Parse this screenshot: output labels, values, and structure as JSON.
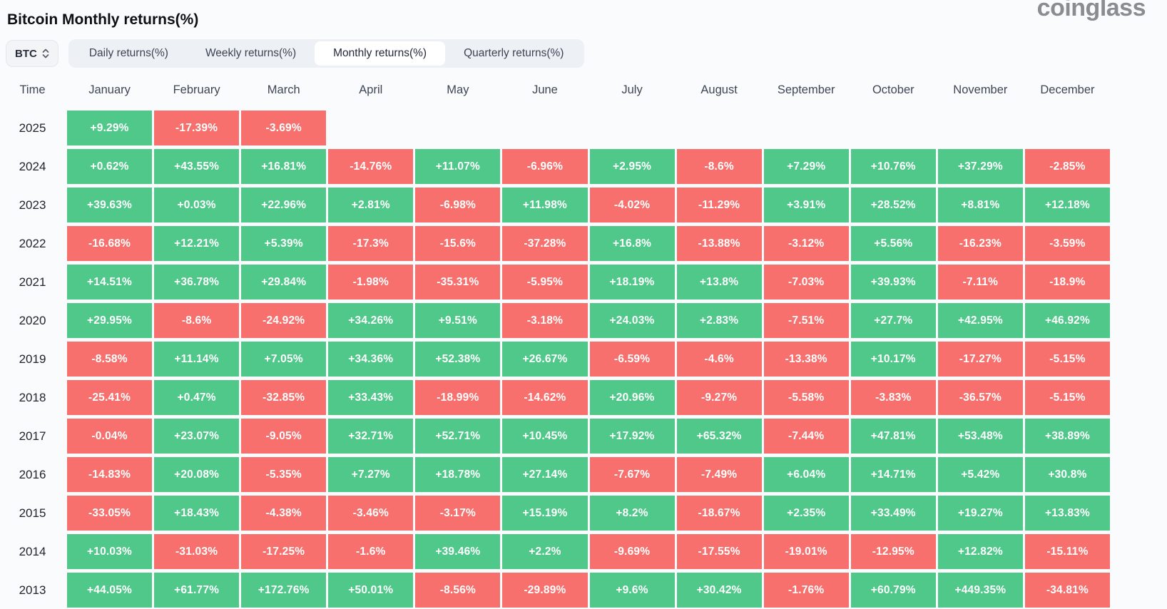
{
  "page": {
    "title": "Bitcoin Monthly returns(%)",
    "logo_text": "coinglass"
  },
  "controls": {
    "symbol_select": {
      "value": "BTC"
    },
    "tabs": [
      {
        "label": "Daily returns(%)",
        "active": false
      },
      {
        "label": "Weekly returns(%)",
        "active": false
      },
      {
        "label": "Monthly returns(%)",
        "active": true
      },
      {
        "label": "Quarterly returns(%)",
        "active": false
      }
    ]
  },
  "colors": {
    "positive": "#4fc88a",
    "negative": "#f7706d",
    "page_background": "#fafbfc",
    "tabbar_background": "#edf0f4"
  },
  "chart_data": {
    "type": "table",
    "title": "Bitcoin Monthly returns(%)",
    "columns": [
      "Time",
      "January",
      "February",
      "March",
      "April",
      "May",
      "June",
      "July",
      "August",
      "September",
      "October",
      "November",
      "December"
    ],
    "rows": [
      {
        "year": "2025",
        "values": [
          "+9.29%",
          "-17.39%",
          "-3.69%",
          "",
          "",
          "",
          "",
          "",
          "",
          "",
          "",
          ""
        ]
      },
      {
        "year": "2024",
        "values": [
          "+0.62%",
          "+43.55%",
          "+16.81%",
          "-14.76%",
          "+11.07%",
          "-6.96%",
          "+2.95%",
          "-8.6%",
          "+7.29%",
          "+10.76%",
          "+37.29%",
          "-2.85%"
        ]
      },
      {
        "year": "2023",
        "values": [
          "+39.63%",
          "+0.03%",
          "+22.96%",
          "+2.81%",
          "-6.98%",
          "+11.98%",
          "-4.02%",
          "-11.29%",
          "+3.91%",
          "+28.52%",
          "+8.81%",
          "+12.18%"
        ]
      },
      {
        "year": "2022",
        "values": [
          "-16.68%",
          "+12.21%",
          "+5.39%",
          "-17.3%",
          "-15.6%",
          "-37.28%",
          "+16.8%",
          "-13.88%",
          "-3.12%",
          "+5.56%",
          "-16.23%",
          "-3.59%"
        ]
      },
      {
        "year": "2021",
        "values": [
          "+14.51%",
          "+36.78%",
          "+29.84%",
          "-1.98%",
          "-35.31%",
          "-5.95%",
          "+18.19%",
          "+13.8%",
          "-7.03%",
          "+39.93%",
          "-7.11%",
          "-18.9%"
        ]
      },
      {
        "year": "2020",
        "values": [
          "+29.95%",
          "-8.6%",
          "-24.92%",
          "+34.26%",
          "+9.51%",
          "-3.18%",
          "+24.03%",
          "+2.83%",
          "-7.51%",
          "+27.7%",
          "+42.95%",
          "+46.92%"
        ]
      },
      {
        "year": "2019",
        "values": [
          "-8.58%",
          "+11.14%",
          "+7.05%",
          "+34.36%",
          "+52.38%",
          "+26.67%",
          "-6.59%",
          "-4.6%",
          "-13.38%",
          "+10.17%",
          "-17.27%",
          "-5.15%"
        ]
      },
      {
        "year": "2018",
        "values": [
          "-25.41%",
          "+0.47%",
          "-32.85%",
          "+33.43%",
          "-18.99%",
          "-14.62%",
          "+20.96%",
          "-9.27%",
          "-5.58%",
          "-3.83%",
          "-36.57%",
          "-5.15%"
        ]
      },
      {
        "year": "2017",
        "values": [
          "-0.04%",
          "+23.07%",
          "-9.05%",
          "+32.71%",
          "+52.71%",
          "+10.45%",
          "+17.92%",
          "+65.32%",
          "-7.44%",
          "+47.81%",
          "+53.48%",
          "+38.89%"
        ]
      },
      {
        "year": "2016",
        "values": [
          "-14.83%",
          "+20.08%",
          "-5.35%",
          "+7.27%",
          "+18.78%",
          "+27.14%",
          "-7.67%",
          "-7.49%",
          "+6.04%",
          "+14.71%",
          "+5.42%",
          "+30.8%"
        ]
      },
      {
        "year": "2015",
        "values": [
          "-33.05%",
          "+18.43%",
          "-4.38%",
          "-3.46%",
          "-3.17%",
          "+15.19%",
          "+8.2%",
          "-18.67%",
          "+2.35%",
          "+33.49%",
          "+19.27%",
          "+13.83%"
        ]
      },
      {
        "year": "2014",
        "values": [
          "+10.03%",
          "-31.03%",
          "-17.25%",
          "-1.6%",
          "+39.46%",
          "+2.2%",
          "-9.69%",
          "-17.55%",
          "-19.01%",
          "-12.95%",
          "+12.82%",
          "-15.11%"
        ]
      },
      {
        "year": "2013",
        "values": [
          "+44.05%",
          "+61.77%",
          "+172.76%",
          "+50.01%",
          "-8.56%",
          "-29.89%",
          "+9.6%",
          "+30.42%",
          "-1.76%",
          "+60.79%",
          "+449.35%",
          "-34.81%"
        ]
      }
    ]
  }
}
